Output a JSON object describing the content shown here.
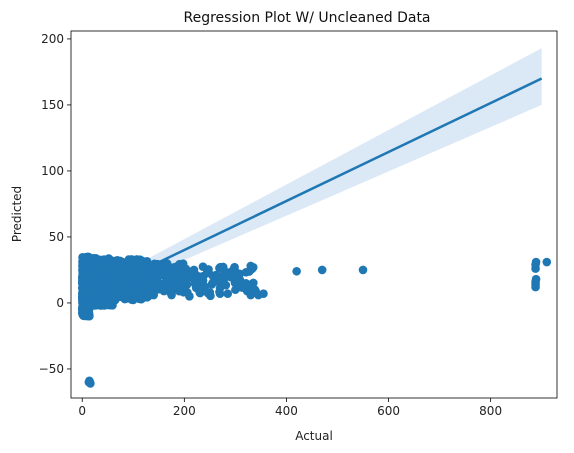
{
  "chart_data": {
    "type": "scatter",
    "title": "Regression Plot W/ Uncleaned Data",
    "xlabel": "Actual",
    "ylabel": "Predicted",
    "xlim": [
      -22,
      930
    ],
    "ylim": [
      -72,
      206
    ],
    "xticks": [
      0,
      200,
      400,
      600,
      800
    ],
    "xtick_labels": [
      "0",
      "200",
      "400",
      "600",
      "800"
    ],
    "yticks": [
      -50,
      0,
      50,
      100,
      150,
      200
    ],
    "ytick_labels": [
      "−50",
      "0",
      "50",
      "100",
      "150",
      "200"
    ],
    "grid": false,
    "legend": "none",
    "point_color": "#1f77b4",
    "line_color": "#1f77b4",
    "band_color": "#c8dcef",
    "regression": {
      "x": [
        0,
        900
      ],
      "y": [
        3,
        170
      ],
      "band_low": [
        -1,
        150
      ],
      "band_high": [
        7,
        193
      ]
    },
    "clusters": [
      {
        "x": [
          0,
          14
        ],
        "y": [
          -10,
          35
        ],
        "n": 500
      },
      {
        "x": [
          14,
          60
        ],
        "y": [
          -2,
          34
        ],
        "n": 400
      },
      {
        "x": [
          60,
          130
        ],
        "y": [
          2,
          33
        ],
        "n": 250
      },
      {
        "x": [
          130,
          200
        ],
        "y": [
          8,
          30
        ],
        "n": 120
      },
      {
        "x": [
          200,
          280
        ],
        "y": [
          5,
          28
        ],
        "n": 50
      },
      {
        "x": [
          280,
          340
        ],
        "y": [
          8,
          28
        ],
        "n": 25
      }
    ],
    "points": [
      {
        "x": 15,
        "y": -60
      },
      {
        "x": 14,
        "y": -59
      },
      {
        "x": 16,
        "y": -61
      },
      {
        "x": 13,
        "y": -60
      },
      {
        "x": 14,
        "y": -10
      },
      {
        "x": 5,
        "y": -9
      },
      {
        "x": 140,
        "y": 6
      },
      {
        "x": 175,
        "y": 6
      },
      {
        "x": 210,
        "y": 5
      },
      {
        "x": 230,
        "y": 8
      },
      {
        "x": 250,
        "y": 8
      },
      {
        "x": 270,
        "y": 7
      },
      {
        "x": 285,
        "y": 7
      },
      {
        "x": 330,
        "y": 6
      },
      {
        "x": 345,
        "y": 6
      },
      {
        "x": 355,
        "y": 7
      },
      {
        "x": 300,
        "y": 10
      },
      {
        "x": 240,
        "y": 12
      },
      {
        "x": 195,
        "y": 10
      },
      {
        "x": 160,
        "y": 9
      },
      {
        "x": 330,
        "y": 25
      },
      {
        "x": 333,
        "y": 26
      },
      {
        "x": 335,
        "y": 27
      },
      {
        "x": 330,
        "y": 28
      },
      {
        "x": 420,
        "y": 24
      },
      {
        "x": 470,
        "y": 25
      },
      {
        "x": 550,
        "y": 25
      },
      {
        "x": 888,
        "y": 12
      },
      {
        "x": 888,
        "y": 14
      },
      {
        "x": 888,
        "y": 16
      },
      {
        "x": 889,
        "y": 18
      },
      {
        "x": 888,
        "y": 26
      },
      {
        "x": 888,
        "y": 29
      },
      {
        "x": 889,
        "y": 31
      },
      {
        "x": 910,
        "y": 31
      }
    ]
  }
}
